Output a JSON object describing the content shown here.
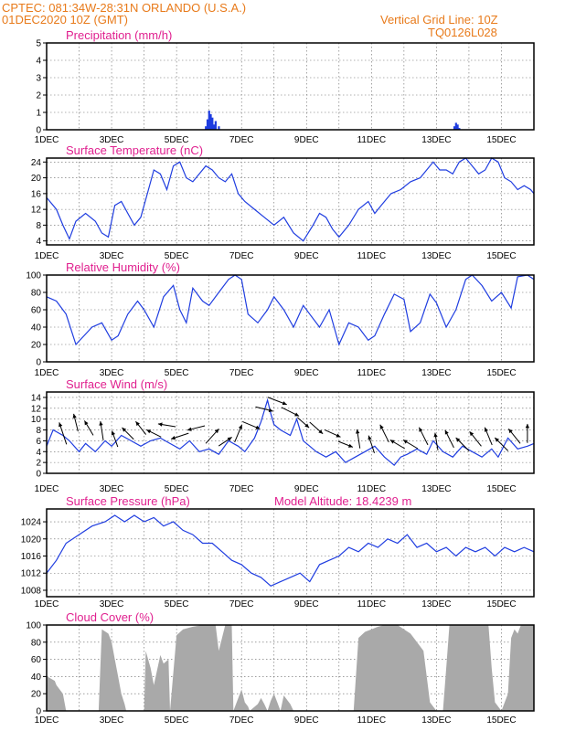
{
  "header": {
    "line1": "CPTEC:   081:34W-28:31N   ORLANDO (U.S.A.)",
    "line2": "01DEC2020 10Z (GMT)",
    "grid_note": "Vertical Grid Line: 10Z",
    "code": "TQ0126L028"
  },
  "x_tick_labels": [
    "1DEC",
    "3DEC",
    "5DEC",
    "7DEC",
    "9DEC",
    "11DEC",
    "13DEC",
    "15DEC"
  ],
  "x_range_days": [
    0,
    15
  ],
  "colors": {
    "series": "#1f3de0",
    "header": "#e87a1a",
    "title": "#e0208f",
    "cloud": "#a9a9a9",
    "arrow": "#000000"
  },
  "chart_data": [
    {
      "type": "bar",
      "title": "Precipitation (mm/h)",
      "ylim": [
        0,
        5
      ],
      "yticks": [
        0,
        1,
        2,
        3,
        4,
        5
      ],
      "x_units": "days since 1DEC 10Z",
      "x": [
        4.9,
        4.95,
        5.0,
        5.05,
        5.1,
        5.15,
        5.2,
        5.3,
        12.55,
        12.6,
        12.65,
        12.7
      ],
      "values": [
        0.2,
        0.6,
        1.1,
        0.9,
        0.7,
        0.3,
        0.5,
        0.2,
        0.2,
        0.4,
        0.3,
        0.1
      ]
    },
    {
      "type": "line",
      "title": "Surface Temperature (nC)",
      "ylim": [
        3,
        25
      ],
      "yticks": [
        4,
        8,
        12,
        16,
        20,
        24
      ],
      "x": [
        0,
        0.3,
        0.5,
        0.7,
        0.9,
        1.2,
        1.5,
        1.7,
        1.9,
        2.1,
        2.3,
        2.5,
        2.7,
        2.9,
        3.1,
        3.3,
        3.5,
        3.7,
        3.9,
        4.1,
        4.3,
        4.5,
        4.7,
        4.9,
        5.1,
        5.3,
        5.5,
        5.7,
        5.9,
        6.1,
        6.4,
        6.7,
        7.0,
        7.3,
        7.6,
        7.9,
        8.2,
        8.4,
        8.6,
        8.8,
        9.0,
        9.3,
        9.6,
        9.9,
        10.1,
        10.3,
        10.6,
        10.9,
        11.2,
        11.5,
        11.7,
        11.9,
        12.1,
        12.3,
        12.5,
        12.7,
        12.9,
        13.1,
        13.3,
        13.5,
        13.7,
        13.9,
        14.1,
        14.3,
        14.5,
        14.7,
        14.9,
        15.0
      ],
      "values": [
        15,
        12,
        8,
        4.5,
        9,
        11,
        9,
        6,
        5,
        13,
        14,
        11,
        8,
        10,
        16,
        22,
        21,
        17,
        23,
        24,
        20,
        19,
        21,
        23,
        22,
        20,
        19,
        21,
        16,
        14,
        12,
        10,
        8,
        10,
        6,
        4,
        8,
        11,
        10,
        7,
        5,
        8,
        12,
        14,
        11,
        13,
        16,
        17,
        19,
        20,
        22,
        24,
        22,
        22,
        21,
        24,
        25,
        23,
        21,
        22,
        25,
        24,
        20,
        19,
        17,
        18,
        17,
        16
      ]
    },
    {
      "type": "line",
      "title": "Relative Humidity (%)",
      "ylim": [
        0,
        100
      ],
      "yticks": [
        0,
        20,
        40,
        60,
        80,
        100
      ],
      "x": [
        0,
        0.3,
        0.6,
        0.9,
        1.1,
        1.4,
        1.7,
        2.0,
        2.2,
        2.5,
        2.8,
        3.0,
        3.3,
        3.6,
        3.9,
        4.1,
        4.3,
        4.5,
        4.8,
        5.0,
        5.3,
        5.6,
        5.8,
        6.0,
        6.2,
        6.5,
        6.8,
        7.0,
        7.3,
        7.6,
        7.9,
        8.1,
        8.4,
        8.7,
        9.0,
        9.3,
        9.6,
        9.9,
        10.1,
        10.4,
        10.7,
        11.0,
        11.2,
        11.5,
        11.8,
        12.0,
        12.3,
        12.6,
        12.9,
        13.1,
        13.4,
        13.7,
        14.0,
        14.3,
        14.5,
        14.8,
        15.0
      ],
      "values": [
        75,
        70,
        55,
        20,
        28,
        40,
        45,
        25,
        30,
        55,
        70,
        60,
        40,
        75,
        88,
        60,
        45,
        85,
        70,
        65,
        80,
        95,
        100,
        95,
        55,
        45,
        60,
        75,
        60,
        40,
        65,
        55,
        40,
        60,
        20,
        45,
        40,
        25,
        30,
        55,
        78,
        72,
        35,
        45,
        78,
        68,
        40,
        60,
        95,
        100,
        88,
        70,
        80,
        62,
        98,
        100,
        95
      ]
    },
    {
      "type": "line",
      "title": "Surface Wind (m/s)",
      "ylim": [
        0,
        15
      ],
      "yticks": [
        0,
        2,
        4,
        6,
        8,
        10,
        12,
        14
      ],
      "x": [
        0,
        0.2,
        0.5,
        0.7,
        1.0,
        1.2,
        1.5,
        1.8,
        2.0,
        2.3,
        2.6,
        2.9,
        3.2,
        3.5,
        3.8,
        4.1,
        4.4,
        4.7,
        5.0,
        5.3,
        5.6,
        5.9,
        6.1,
        6.4,
        6.6,
        6.8,
        6.9,
        7.0,
        7.2,
        7.5,
        7.7,
        7.9,
        8.1,
        8.3,
        8.6,
        8.9,
        9.2,
        9.5,
        9.8,
        10.1,
        10.4,
        10.7,
        10.9,
        11.1,
        11.4,
        11.7,
        11.9,
        12.2,
        12.5,
        12.8,
        13.1,
        13.4,
        13.7,
        13.9,
        14.2,
        14.5,
        14.8,
        15.0
      ],
      "values": [
        5,
        8,
        7,
        6,
        4,
        5.5,
        4,
        6,
        5,
        7,
        6,
        5,
        6,
        6.5,
        5.5,
        4.5,
        6,
        4,
        4.5,
        3.5,
        6,
        5,
        4,
        6.5,
        9.5,
        13.5,
        11,
        9,
        8,
        7,
        10,
        6,
        5,
        4,
        3,
        4,
        2,
        3,
        4,
        5,
        3,
        1.5,
        3,
        3.5,
        4.5,
        3.5,
        6,
        4,
        3,
        5,
        4,
        3,
        4.5,
        3,
        6.5,
        4.5,
        5,
        5.5
      ],
      "arrows": [
        {
          "x": 0.5,
          "u": -0.5,
          "v": 1.5
        },
        {
          "x": 0.9,
          "u": -0.3,
          "v": 1.2
        },
        {
          "x": 1.3,
          "u": -0.6,
          "v": 1.0
        },
        {
          "x": 1.7,
          "u": -0.2,
          "v": 1.3
        },
        {
          "x": 2.1,
          "u": -0.4,
          "v": 1.1
        },
        {
          "x": 2.5,
          "u": -0.8,
          "v": 0.8
        },
        {
          "x": 2.9,
          "u": -0.7,
          "v": 0.9
        },
        {
          "x": 3.3,
          "u": -1.0,
          "v": 0.5
        },
        {
          "x": 3.7,
          "u": -1.2,
          "v": 0.2
        },
        {
          "x": 4.1,
          "u": -1.2,
          "v": -0.4
        },
        {
          "x": 4.6,
          "u": -1.2,
          "v": -0.3
        },
        {
          "x": 5.1,
          "u": 0.9,
          "v": 1.0
        },
        {
          "x": 5.5,
          "u": 0.9,
          "v": 0.6
        },
        {
          "x": 5.9,
          "u": 0.5,
          "v": 1.2
        },
        {
          "x": 6.3,
          "u": 1.2,
          "v": -0.5
        },
        {
          "x": 6.7,
          "u": 1.2,
          "v": -0.3
        },
        {
          "x": 7.1,
          "u": 1.3,
          "v": -0.5
        },
        {
          "x": 7.5,
          "u": 1.2,
          "v": -0.6
        },
        {
          "x": 7.9,
          "u": 0.8,
          "v": -0.7
        },
        {
          "x": 8.3,
          "u": 0.9,
          "v": -0.8
        },
        {
          "x": 8.8,
          "u": 1.1,
          "v": -0.5
        },
        {
          "x": 9.2,
          "u": 1.0,
          "v": -0.4
        },
        {
          "x": 9.6,
          "u": -0.2,
          "v": 1.3
        },
        {
          "x": 10.0,
          "u": -0.4,
          "v": 1.2
        },
        {
          "x": 10.4,
          "u": -0.6,
          "v": 1.2
        },
        {
          "x": 10.8,
          "u": -1.0,
          "v": 0.6
        },
        {
          "x": 11.2,
          "u": -1.0,
          "v": 0.6
        },
        {
          "x": 11.6,
          "u": -0.6,
          "v": 1.2
        },
        {
          "x": 12.0,
          "u": -0.2,
          "v": 1.2
        },
        {
          "x": 12.4,
          "u": -0.6,
          "v": 1.2
        },
        {
          "x": 12.8,
          "u": -0.9,
          "v": 0.9
        },
        {
          "x": 13.2,
          "u": -0.8,
          "v": 1.0
        },
        {
          "x": 13.6,
          "u": -0.5,
          "v": 1.2
        },
        {
          "x": 14.0,
          "u": -0.9,
          "v": 0.9
        },
        {
          "x": 14.4,
          "u": -0.8,
          "v": 1.0
        },
        {
          "x": 14.8,
          "u": 0.0,
          "v": 1.3
        }
      ]
    },
    {
      "type": "line",
      "title": "Surface Pressure (hPa)",
      "note": "Model Altitude: 18.4239 m",
      "ylim": [
        1006.5,
        1027
      ],
      "yticks": [
        1008,
        1012,
        1016,
        1020,
        1024
      ],
      "x": [
        0,
        0.3,
        0.6,
        1.0,
        1.4,
        1.8,
        2.1,
        2.4,
        2.7,
        3.0,
        3.3,
        3.6,
        3.9,
        4.2,
        4.5,
        4.8,
        5.1,
        5.4,
        5.7,
        6.0,
        6.3,
        6.6,
        6.9,
        7.2,
        7.5,
        7.8,
        8.1,
        8.4,
        8.7,
        9.0,
        9.3,
        9.6,
        9.9,
        10.2,
        10.5,
        10.8,
        11.1,
        11.4,
        11.7,
        12.0,
        12.3,
        12.6,
        12.9,
        13.2,
        13.5,
        13.8,
        14.1,
        14.4,
        14.7,
        15.0
      ],
      "values": [
        1012,
        1015,
        1019,
        1021,
        1023,
        1024,
        1025.5,
        1024,
        1025.5,
        1024,
        1025,
        1023,
        1024,
        1022,
        1021,
        1019,
        1019,
        1017,
        1015,
        1014,
        1012,
        1011,
        1009,
        1010,
        1011,
        1012,
        1010,
        1014,
        1015,
        1016,
        1018,
        1017,
        1019,
        1018,
        1020,
        1019,
        1021,
        1018,
        1019,
        1017,
        1018,
        1016,
        1018,
        1017,
        1018,
        1016,
        1018,
        1017,
        1018,
        1017
      ]
    },
    {
      "type": "area",
      "title": "Cloud Cover (%)",
      "ylim": [
        0,
        100
      ],
      "yticks": [
        0,
        20,
        40,
        60,
        80,
        100
      ],
      "x": [
        0,
        0.02,
        0.25,
        0.3,
        0.5,
        0.6,
        1.6,
        1.7,
        1.9,
        2.0,
        2.1,
        2.2,
        2.3,
        2.4,
        2.45,
        3.0,
        3.05,
        3.2,
        3.3,
        3.5,
        3.6,
        3.75,
        3.8,
        4.0,
        4.2,
        4.5,
        4.8,
        5.0,
        5.2,
        5.3,
        5.5,
        5.7,
        5.75,
        6.0,
        6.1,
        6.2,
        6.25,
        6.5,
        6.6,
        6.7,
        6.8,
        6.9,
        7.0,
        7.1,
        7.2,
        7.3,
        7.5,
        7.6,
        7.7,
        7.8,
        8.0,
        8.2,
        8.4,
        8.6,
        8.8,
        9.0,
        9.2,
        9.4,
        9.45,
        9.6,
        9.8,
        10.0,
        10.2,
        10.4,
        10.6,
        10.8,
        11.0,
        11.2,
        11.4,
        11.6,
        11.8,
        12.0,
        12.2,
        12.3,
        12.4,
        12.5,
        12.6,
        12.8,
        13.0,
        13.2,
        13.4,
        13.6,
        13.7,
        13.8,
        14.0,
        14.2,
        14.3,
        14.4,
        14.5,
        14.6,
        14.8,
        15.0
      ],
      "values": [
        0,
        40,
        35,
        30,
        20,
        0,
        0,
        95,
        90,
        80,
        60,
        40,
        20,
        8,
        0,
        0,
        70,
        50,
        30,
        65,
        55,
        60,
        0,
        88,
        95,
        98,
        100,
        100,
        100,
        70,
        100,
        100,
        0,
        25,
        10,
        5,
        0,
        8,
        15,
        8,
        0,
        12,
        20,
        10,
        0,
        18,
        8,
        0,
        0,
        0,
        0,
        0,
        0,
        0,
        0,
        0,
        0,
        0,
        0,
        85,
        92,
        95,
        98,
        100,
        100,
        100,
        95,
        90,
        80,
        70,
        10,
        0,
        0,
        50,
        100,
        100,
        100,
        100,
        100,
        100,
        100,
        100,
        50,
        10,
        0,
        20,
        85,
        95,
        90,
        100,
        100,
        100
      ]
    }
  ]
}
